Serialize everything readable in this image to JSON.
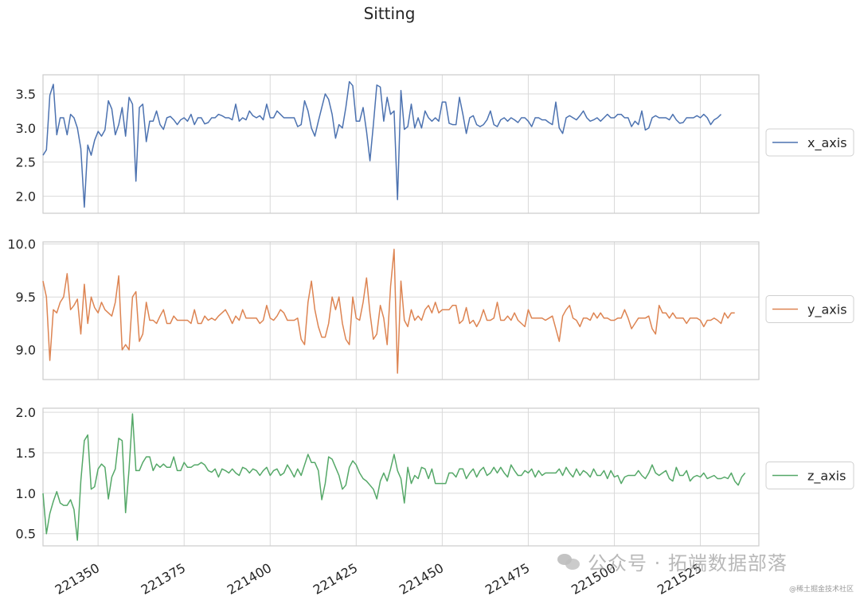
{
  "chart_data": {
    "type": "line",
    "title": "Sitting",
    "x_range": [
      221334,
      221542
    ],
    "x_ticks": [
      221350,
      221375,
      221400,
      221425,
      221450,
      221475,
      221500,
      221525
    ],
    "grid": true,
    "legend_placement": "right",
    "x_step": 1,
    "x_start": 221334,
    "panels": [
      {
        "name": "x_axis",
        "color": "#4c72b0",
        "ylim": [
          1.75,
          3.78
        ],
        "yticks": [
          "2.0",
          "2.5",
          "3.0",
          "3.5"
        ],
        "ytick_values": [
          2.0,
          2.5,
          3.0,
          3.5
        ],
        "values": [
          2.6,
          2.68,
          3.48,
          3.64,
          2.9,
          3.15,
          3.15,
          2.9,
          3.2,
          3.15,
          3.0,
          2.7,
          1.84,
          2.75,
          2.6,
          2.82,
          2.95,
          2.88,
          2.97,
          3.4,
          3.28,
          2.9,
          3.05,
          3.3,
          2.88,
          3.45,
          3.35,
          2.22,
          3.3,
          3.35,
          2.8,
          3.1,
          3.1,
          3.25,
          3.05,
          2.98,
          3.15,
          3.17,
          3.12,
          3.05,
          3.12,
          3.15,
          3.1,
          3.2,
          3.05,
          3.15,
          3.15,
          3.06,
          3.08,
          3.15,
          3.15,
          3.2,
          3.18,
          3.15,
          3.15,
          3.12,
          3.35,
          3.1,
          3.15,
          3.12,
          3.25,
          3.18,
          3.15,
          3.18,
          3.12,
          3.35,
          3.15,
          3.15,
          3.25,
          3.2,
          3.15,
          3.15,
          3.15,
          3.15,
          3.02,
          3.05,
          3.4,
          3.25,
          3.0,
          2.88,
          3.1,
          3.3,
          3.5,
          3.42,
          3.2,
          2.85,
          3.05,
          3.0,
          3.3,
          3.68,
          3.62,
          3.1,
          3.1,
          3.3,
          2.95,
          2.52,
          3.05,
          3.63,
          3.6,
          3.1,
          3.45,
          3.2,
          3.25,
          1.95,
          3.55,
          2.98,
          3.02,
          3.35,
          3.0,
          3.15,
          3.0,
          3.25,
          3.15,
          3.1,
          3.15,
          3.1,
          3.38,
          3.38,
          3.07,
          3.05,
          3.05,
          3.45,
          3.2,
          2.92,
          3.15,
          3.18,
          3.05,
          3.02,
          3.05,
          3.12,
          3.25,
          3.05,
          3.02,
          3.12,
          3.15,
          3.1,
          3.15,
          3.12,
          3.08,
          3.15,
          3.15,
          3.1,
          3.02,
          3.15,
          3.15,
          3.12,
          3.12,
          3.08,
          3.05,
          3.38,
          3.0,
          2.92,
          3.15,
          3.18,
          3.15,
          3.12,
          3.18,
          3.25,
          3.15,
          3.1,
          3.12,
          3.15,
          3.1,
          3.15,
          3.2,
          3.15,
          3.15,
          3.2,
          3.2,
          3.15,
          3.15,
          3.02,
          3.1,
          3.05,
          3.25,
          2.97,
          3.0,
          3.15,
          3.18,
          3.15,
          3.15,
          3.15,
          3.12,
          3.2,
          3.12,
          3.07,
          3.08,
          3.15,
          3.15,
          3.15,
          3.18,
          3.15,
          3.2,
          3.15,
          3.05,
          3.12,
          3.15,
          3.2
        ]
      },
      {
        "name": "y_axis",
        "color": "#dd8452",
        "ylim": [
          8.72,
          10.02
        ],
        "yticks": [
          "9.0",
          "9.5",
          "10.0"
        ],
        "ytick_values": [
          9.0,
          9.5,
          10.0
        ],
        "values": [
          9.65,
          9.5,
          8.9,
          9.38,
          9.35,
          9.45,
          9.5,
          9.72,
          9.38,
          9.42,
          9.48,
          9.15,
          9.62,
          9.25,
          9.5,
          9.4,
          9.35,
          9.45,
          9.38,
          9.35,
          9.32,
          9.45,
          9.7,
          9.0,
          9.05,
          9.0,
          9.5,
          9.55,
          9.08,
          9.15,
          9.45,
          9.28,
          9.28,
          9.25,
          9.32,
          9.38,
          9.25,
          9.25,
          9.32,
          9.28,
          9.28,
          9.28,
          9.28,
          9.25,
          9.38,
          9.25,
          9.25,
          9.32,
          9.28,
          9.3,
          9.28,
          9.32,
          9.35,
          9.38,
          9.32,
          9.25,
          9.32,
          9.28,
          9.38,
          9.3,
          9.3,
          9.3,
          9.3,
          9.25,
          9.28,
          9.42,
          9.3,
          9.28,
          9.32,
          9.38,
          9.35,
          9.28,
          9.28,
          9.28,
          9.3,
          9.1,
          9.05,
          9.45,
          9.65,
          9.38,
          9.22,
          9.12,
          9.12,
          9.25,
          9.5,
          9.38,
          9.5,
          9.25,
          9.1,
          9.05,
          9.5,
          9.3,
          9.28,
          9.45,
          9.68,
          9.35,
          9.1,
          9.15,
          9.42,
          9.3,
          9.05,
          9.6,
          9.95,
          8.78,
          9.65,
          9.28,
          9.22,
          9.38,
          9.28,
          9.32,
          9.28,
          9.38,
          9.42,
          9.35,
          9.45,
          9.35,
          9.38,
          9.38,
          9.38,
          9.42,
          9.42,
          9.25,
          9.28,
          9.4,
          9.25,
          9.28,
          9.22,
          9.28,
          9.38,
          9.28,
          9.28,
          9.3,
          9.45,
          9.28,
          9.28,
          9.32,
          9.28,
          9.35,
          9.28,
          9.25,
          9.22,
          9.38,
          9.3,
          9.3,
          9.3,
          9.3,
          9.28,
          9.3,
          9.32,
          9.2,
          9.08,
          9.32,
          9.38,
          9.42,
          9.3,
          9.28,
          9.22,
          9.3,
          9.3,
          9.28,
          9.35,
          9.3,
          9.35,
          9.3,
          9.3,
          9.28,
          9.28,
          9.3,
          9.3,
          9.38,
          9.3,
          9.2,
          9.25,
          9.3,
          9.3,
          9.3,
          9.32,
          9.2,
          9.15,
          9.42,
          9.35,
          9.35,
          9.3,
          9.35,
          9.3,
          9.3,
          9.3,
          9.25,
          9.3,
          9.3,
          9.3,
          9.28,
          9.22,
          9.28,
          9.28,
          9.3,
          9.28,
          9.25,
          9.35,
          9.3,
          9.35,
          9.35
        ]
      },
      {
        "name": "z_axis",
        "color": "#55a868",
        "ylim": [
          0.35,
          2.05
        ],
        "yticks": [
          "0.5",
          "1.0",
          "1.5",
          "2.0"
        ],
        "ytick_values": [
          0.5,
          1.0,
          1.5,
          2.0
        ],
        "values": [
          1.0,
          0.5,
          0.75,
          0.9,
          1.02,
          0.88,
          0.85,
          0.85,
          0.92,
          0.8,
          0.42,
          1.15,
          1.65,
          1.72,
          1.05,
          1.08,
          1.3,
          1.36,
          1.32,
          0.93,
          1.2,
          1.3,
          1.68,
          1.65,
          0.76,
          1.3,
          1.98,
          1.28,
          1.28,
          1.38,
          1.45,
          1.45,
          1.28,
          1.36,
          1.32,
          1.36,
          1.32,
          1.32,
          1.45,
          1.28,
          1.28,
          1.38,
          1.32,
          1.32,
          1.35,
          1.35,
          1.38,
          1.35,
          1.28,
          1.26,
          1.3,
          1.2,
          1.3,
          1.28,
          1.25,
          1.3,
          1.25,
          1.22,
          1.32,
          1.3,
          1.25,
          1.3,
          1.28,
          1.22,
          1.28,
          1.32,
          1.22,
          1.28,
          1.3,
          1.22,
          1.25,
          1.35,
          1.28,
          1.2,
          1.3,
          1.22,
          1.35,
          1.48,
          1.38,
          1.38,
          1.28,
          0.92,
          1.12,
          1.45,
          1.42,
          1.32,
          1.22,
          1.05,
          1.1,
          1.32,
          1.4,
          1.35,
          1.25,
          1.18,
          1.15,
          1.1,
          1.05,
          0.93,
          1.15,
          1.25,
          1.15,
          1.3,
          1.48,
          1.28,
          1.18,
          0.88,
          1.32,
          1.12,
          1.22,
          1.18,
          1.32,
          1.3,
          1.18,
          1.3,
          1.12,
          1.12,
          1.12,
          1.12,
          1.25,
          1.25,
          1.2,
          1.3,
          1.3,
          1.18,
          1.25,
          1.3,
          1.2,
          1.28,
          1.32,
          1.22,
          1.25,
          1.32,
          1.25,
          1.32,
          1.25,
          1.2,
          1.35,
          1.28,
          1.22,
          1.22,
          1.28,
          1.25,
          1.3,
          1.2,
          1.28,
          1.22,
          1.25,
          1.25,
          1.25,
          1.25,
          1.3,
          1.22,
          1.32,
          1.25,
          1.2,
          1.3,
          1.22,
          1.28,
          1.25,
          1.2,
          1.3,
          1.22,
          1.22,
          1.28,
          1.18,
          1.28,
          1.2,
          1.22,
          1.12,
          1.2,
          1.22,
          1.22,
          1.22,
          1.28,
          1.22,
          1.18,
          1.25,
          1.35,
          1.25,
          1.22,
          1.25,
          1.28,
          1.18,
          1.15,
          1.32,
          1.22,
          1.22,
          1.28,
          1.15,
          1.2,
          1.22,
          1.2,
          1.25,
          1.18,
          1.2,
          1.22,
          1.18,
          1.18,
          1.2,
          1.18,
          1.25,
          1.15,
          1.1,
          1.2,
          1.25
        ]
      }
    ]
  },
  "watermark": {
    "text": "公众号 · 拓端数据部落",
    "credit": "@稀土掘金技术社区"
  }
}
